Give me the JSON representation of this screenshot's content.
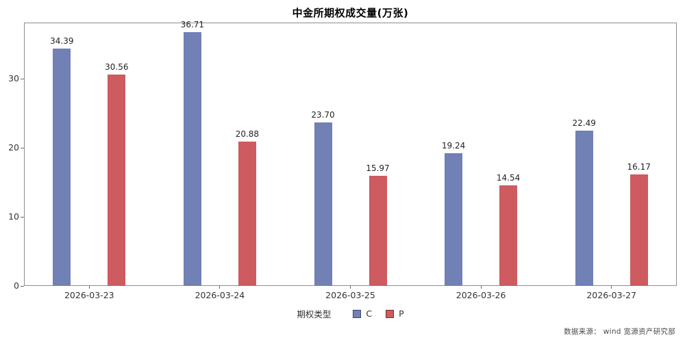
{
  "page": {
    "title": "中金所期权成交量(万张)",
    "source": "数据来源：  wind  宽源资产研究部"
  },
  "legend": {
    "title": "期权类型"
  },
  "chart_data": {
    "type": "bar",
    "title": "中金所期权成交量(万张)",
    "categories": [
      "2026-03-23",
      "2026-03-24",
      "2026-03-25",
      "2026-03-26",
      "2026-03-27"
    ],
    "series": [
      {
        "name": "C",
        "color": "#7180B5",
        "swatch_border": "#39466f",
        "values": [
          34.39,
          36.71,
          23.7,
          19.24,
          22.49
        ],
        "labels": [
          "34.39",
          "36.71",
          "23.70",
          "19.24",
          "22.49"
        ]
      },
      {
        "name": "P",
        "color": "#CD5B5F",
        "swatch_border": "#6e3034",
        "values": [
          30.56,
          20.88,
          15.97,
          14.54,
          16.17
        ],
        "labels": [
          "30.56",
          "20.88",
          "15.97",
          "14.54",
          "16.17"
        ]
      }
    ],
    "ylim": [
      0,
      38.12
    ],
    "yticks": [
      0,
      10,
      20,
      30
    ],
    "xlabel": "",
    "ylabel": "",
    "legend_title": "期权类型",
    "legend_position": "bottom",
    "grid": false
  }
}
